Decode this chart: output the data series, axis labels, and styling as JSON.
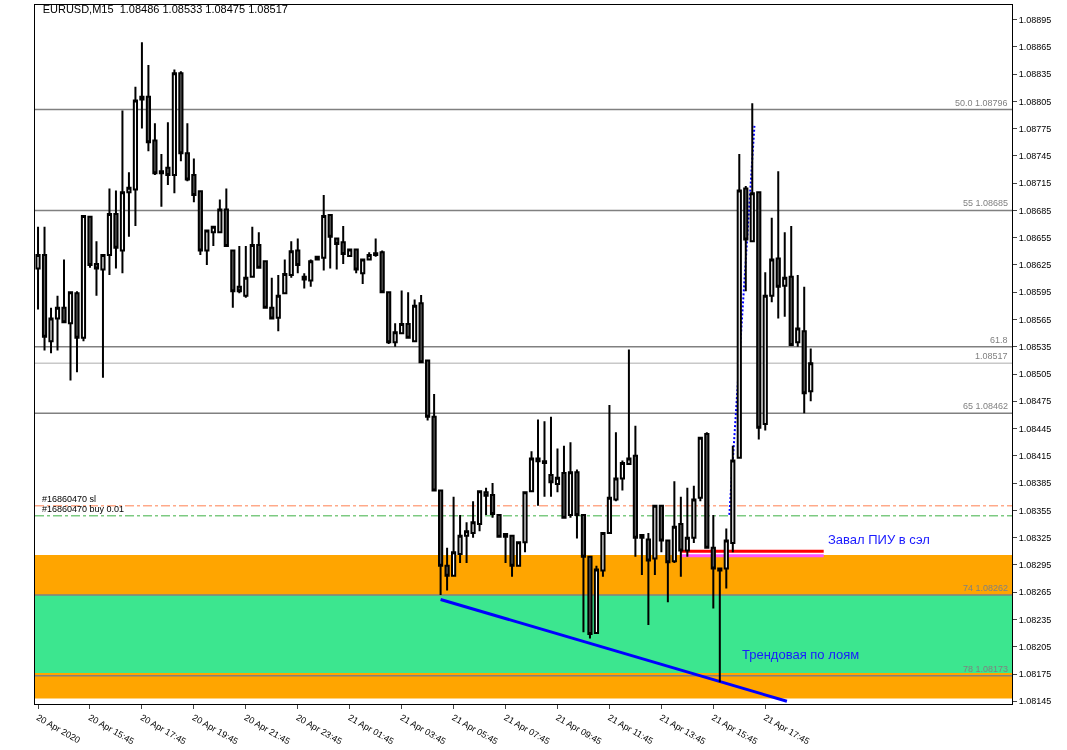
{
  "chart_data": {
    "type": "candlestick",
    "title": "EURUSD,M15  1.08486 1.08533 1.08475 1.08517",
    "x": [
      "2020-04-20T13:45",
      "2020-04-20T14:00",
      "2020-04-20T14:15",
      "2020-04-20T14:30",
      "2020-04-20T14:45",
      "2020-04-20T15:00",
      "2020-04-20T15:15",
      "2020-04-20T15:30",
      "2020-04-20T15:45",
      "2020-04-20T16:00",
      "2020-04-20T16:15",
      "2020-04-20T16:30",
      "2020-04-20T16:45",
      "2020-04-20T17:00",
      "2020-04-20T17:15",
      "2020-04-20T17:30",
      "2020-04-20T17:45",
      "2020-04-20T18:00",
      "2020-04-20T18:15",
      "2020-04-20T18:30",
      "2020-04-20T18:45",
      "2020-04-20T19:00",
      "2020-04-20T19:15",
      "2020-04-20T19:30",
      "2020-04-20T19:45",
      "2020-04-20T20:00",
      "2020-04-20T20:15",
      "2020-04-20T20:30",
      "2020-04-20T20:45",
      "2020-04-20T21:00",
      "2020-04-20T21:15",
      "2020-04-20T21:30",
      "2020-04-20T21:45",
      "2020-04-20T22:00",
      "2020-04-20T22:15",
      "2020-04-20T22:30",
      "2020-04-20T22:45",
      "2020-04-20T23:00",
      "2020-04-20T23:15",
      "2020-04-20T23:30",
      "2020-04-20T23:45",
      "2020-04-21T00:00",
      "2020-04-21T00:15",
      "2020-04-21T00:30",
      "2020-04-21T00:45",
      "2020-04-21T01:00",
      "2020-04-21T01:15",
      "2020-04-21T01:30",
      "2020-04-21T01:45",
      "2020-04-21T02:00",
      "2020-04-21T02:15",
      "2020-04-21T02:30",
      "2020-04-21T02:45",
      "2020-04-21T03:00",
      "2020-04-21T03:15",
      "2020-04-21T03:30",
      "2020-04-21T03:45",
      "2020-04-21T04:00",
      "2020-04-21T04:15",
      "2020-04-21T04:30",
      "2020-04-21T04:45",
      "2020-04-21T05:00",
      "2020-04-21T05:15",
      "2020-04-21T05:30",
      "2020-04-21T05:45",
      "2020-04-21T06:00",
      "2020-04-21T06:15",
      "2020-04-21T06:30",
      "2020-04-21T06:45",
      "2020-04-21T07:00",
      "2020-04-21T07:15",
      "2020-04-21T07:30",
      "2020-04-21T07:45",
      "2020-04-21T08:00",
      "2020-04-21T08:15",
      "2020-04-21T08:30",
      "2020-04-21T08:45",
      "2020-04-21T09:00",
      "2020-04-21T09:15",
      "2020-04-21T09:30",
      "2020-04-21T09:45",
      "2020-04-21T10:00",
      "2020-04-21T10:15",
      "2020-04-21T10:30",
      "2020-04-21T10:45",
      "2020-04-21T11:00",
      "2020-04-21T11:15",
      "2020-04-21T11:30",
      "2020-04-21T11:45",
      "2020-04-21T12:00",
      "2020-04-21T12:15",
      "2020-04-21T12:30",
      "2020-04-21T12:45",
      "2020-04-21T13:00",
      "2020-04-21T13:15",
      "2020-04-21T13:30",
      "2020-04-21T13:45",
      "2020-04-21T14:00",
      "2020-04-21T14:15",
      "2020-04-21T14:30",
      "2020-04-21T14:45",
      "2020-04-21T15:00",
      "2020-04-21T15:15",
      "2020-04-21T15:30",
      "2020-04-21T15:45",
      "2020-04-21T16:00",
      "2020-04-21T16:15",
      "2020-04-21T16:30",
      "2020-04-21T16:45",
      "2020-04-21T17:00",
      "2020-04-21T17:15",
      "2020-04-21T17:30",
      "2020-04-21T17:45",
      "2020-04-21T18:00",
      "2020-04-21T18:15",
      "2020-04-21T18:30",
      "2020-04-21T18:45",
      "2020-04-21T19:00",
      "2020-04-21T19:15",
      "2020-04-21T19:30"
    ],
    "ohlc": [
      [
        1.08621,
        1.08667,
        1.08576,
        1.08636
      ],
      [
        1.08636,
        1.08667,
        1.08531,
        1.08546
      ],
      [
        1.08541,
        1.08578,
        1.08528,
        1.08566
      ],
      [
        1.08566,
        1.08591,
        1.08531,
        1.08578
      ],
      [
        1.08578,
        1.08631,
        1.08561,
        1.08562
      ],
      [
        1.08561,
        1.08595,
        1.08498,
        1.08595
      ],
      [
        1.08594,
        1.08596,
        1.08507,
        1.08545
      ],
      [
        1.08545,
        1.08679,
        1.08541,
        1.08679
      ],
      [
        1.08678,
        1.08678,
        1.08622,
        1.08625
      ],
      [
        1.08626,
        1.08651,
        1.08591,
        1.08621
      ],
      [
        1.0862,
        1.08637,
        1.08501,
        1.08636
      ],
      [
        1.08636,
        1.08709,
        1.08614,
        1.08681
      ],
      [
        1.08681,
        1.08707,
        1.08621,
        1.08644
      ],
      [
        1.08641,
        1.08795,
        1.08616,
        1.08705
      ],
      [
        1.08705,
        1.08727,
        1.08656,
        1.0871
      ],
      [
        1.08708,
        1.08821,
        1.08668,
        1.08806
      ],
      [
        1.08807,
        1.0887,
        1.08775,
        1.0881
      ],
      [
        1.0881,
        1.08845,
        1.0875,
        1.0876
      ],
      [
        1.08762,
        1.08781,
        1.08724,
        1.08726
      ],
      [
        1.08728,
        1.08747,
        1.08689,
        1.08726
      ],
      [
        1.08732,
        1.08782,
        1.08713,
        1.08724
      ],
      [
        1.08724,
        1.0884,
        1.08704,
        1.08836
      ],
      [
        1.08836,
        1.08838,
        1.08739,
        1.08748
      ],
      [
        1.08748,
        1.08781,
        1.08717,
        1.08719
      ],
      [
        1.08724,
        1.08742,
        1.08694,
        1.08702
      ],
      [
        1.08706,
        1.08706,
        1.08636,
        1.08641
      ],
      [
        1.08641,
        1.08663,
        1.08625,
        1.08663
      ],
      [
        1.08661,
        1.08667,
        1.08646,
        1.08667
      ],
      [
        1.08661,
        1.08697,
        1.08661,
        1.08686
      ],
      [
        1.08686,
        1.08709,
        1.08646,
        1.08646
      ],
      [
        1.08641,
        1.08641,
        1.08578,
        1.08596
      ],
      [
        1.08601,
        1.08646,
        1.08594,
        1.08596
      ],
      [
        1.08591,
        1.08646,
        1.08589,
        1.08611
      ],
      [
        1.08612,
        1.08667,
        1.08611,
        1.08647
      ],
      [
        1.08647,
        1.08661,
        1.08621,
        1.08622
      ],
      [
        1.08629,
        1.08629,
        1.08577,
        1.08578
      ],
      [
        1.08578,
        1.08611,
        1.08565,
        1.08566
      ],
      [
        1.08567,
        1.08614,
        1.08552,
        1.08591
      ],
      [
        1.08594,
        1.08631,
        1.08594,
        1.08615
      ],
      [
        1.08614,
        1.08651,
        1.08611,
        1.0864
      ],
      [
        1.08641,
        1.08654,
        1.08616,
        1.08625
      ],
      [
        1.08612,
        1.08616,
        1.08599,
        1.08609
      ],
      [
        1.08608,
        1.08631,
        1.08601,
        1.08629
      ],
      [
        1.08631,
        1.08635,
        1.0863,
        1.08634
      ],
      [
        1.08633,
        1.08702,
        1.08619,
        1.08679
      ],
      [
        1.0868,
        1.0868,
        1.08621,
        1.08656
      ],
      [
        1.08654,
        1.08655,
        1.0862,
        1.08648
      ],
      [
        1.0865,
        1.08668,
        1.08626,
        1.08637
      ],
      [
        1.08635,
        1.08643,
        1.08634,
        1.08642
      ],
      [
        1.08642,
        1.08642,
        1.08616,
        1.0862
      ],
      [
        1.08616,
        1.08631,
        1.08604,
        1.08631
      ],
      [
        1.08631,
        1.08639,
        1.0863,
        1.08636
      ],
      [
        1.08636,
        1.08654,
        1.08634,
        1.08638
      ],
      [
        1.08639,
        1.08641,
        1.08595,
        1.08595
      ],
      [
        1.08595,
        1.08595,
        1.08538,
        1.0854
      ],
      [
        1.0854,
        1.08561,
        1.08535,
        1.08551
      ],
      [
        1.0855,
        1.08597,
        1.0855,
        1.0856
      ],
      [
        1.0856,
        1.08595,
        1.08545,
        1.08545
      ],
      [
        1.08541,
        1.08587,
        1.08541,
        1.0858
      ],
      [
        1.08583,
        1.08592,
        1.08518,
        1.08518
      ],
      [
        1.0852,
        1.0852,
        1.08454,
        1.08458
      ],
      [
        1.08458,
        1.08483,
        1.08377,
        1.08377
      ],
      [
        1.08377,
        1.08377,
        1.08262,
        1.08294
      ],
      [
        1.08294,
        1.08314,
        1.08267,
        1.08283
      ],
      [
        1.08283,
        1.0837,
        1.08283,
        1.08309
      ],
      [
        1.08307,
        1.0835,
        1.08297,
        1.08327
      ],
      [
        1.08327,
        1.08342,
        1.08297,
        1.08332
      ],
      [
        1.0833,
        1.08365,
        1.08325,
        1.08342
      ],
      [
        1.0834,
        1.08376,
        1.08332,
        1.08376
      ],
      [
        1.08375,
        1.0838,
        1.0835,
        1.08371
      ],
      [
        1.08372,
        1.08385,
        1.08347,
        1.08351
      ],
      [
        1.0835,
        1.0835,
        1.08326,
        1.08326
      ],
      [
        1.08326,
        1.0833,
        1.08297,
        1.08329
      ],
      [
        1.08327,
        1.08327,
        1.08282,
        1.08294
      ],
      [
        1.08294,
        1.0832,
        1.08294,
        1.0832
      ],
      [
        1.0832,
        1.08375,
        1.08309,
        1.08375
      ],
      [
        1.08376,
        1.0842,
        1.08376,
        1.08412
      ],
      [
        1.08409,
        1.08455,
        1.0836,
        1.08412
      ],
      [
        1.08409,
        1.08453,
        1.0837,
        1.08407
      ],
      [
        1.08394,
        1.08458,
        1.0837,
        1.08386
      ],
      [
        1.08384,
        1.08423,
        1.08375,
        1.08391
      ],
      [
        1.08396,
        1.08426,
        1.08347,
        1.08347
      ],
      [
        1.0835,
        1.0843,
        1.08347,
        1.08397
      ],
      [
        1.08397,
        1.084,
        1.08324,
        1.0835
      ],
      [
        1.0835,
        1.0835,
        1.08221,
        1.08304
      ],
      [
        1.08304,
        1.08304,
        1.08214,
        1.08219
      ],
      [
        1.0822,
        1.08294,
        1.08219,
        1.0829
      ],
      [
        1.08289,
        1.0833,
        1.08282,
        1.0833
      ],
      [
        1.0833,
        1.08471,
        1.08329,
        1.08369
      ],
      [
        1.08367,
        1.08441,
        1.08365,
        1.0839
      ],
      [
        1.0839,
        1.0841,
        1.08377,
        1.08407
      ],
      [
        1.08406,
        1.08532,
        1.08406,
        1.08412
      ],
      [
        1.08415,
        1.08448,
        1.08304,
        1.08325
      ],
      [
        1.08328,
        1.08328,
        1.08284,
        1.08325
      ],
      [
        1.08323,
        1.0833,
        1.08229,
        1.083
      ],
      [
        1.08302,
        1.0836,
        1.08284,
        1.0836
      ],
      [
        1.0836,
        1.0836,
        1.08309,
        1.08322
      ],
      [
        1.08322,
        1.08322,
        1.08254,
        1.08298
      ],
      [
        1.08299,
        1.08387,
        1.08297,
        1.08337
      ],
      [
        1.0834,
        1.0837,
        1.08282,
        1.08311
      ],
      [
        1.08311,
        1.0838,
        1.08304,
        1.08325
      ],
      [
        1.08325,
        1.08382,
        1.08319,
        1.08367
      ],
      [
        1.08369,
        1.08435,
        1.08365,
        1.08435
      ],
      [
        1.08439,
        1.08441,
        1.08314,
        1.08314
      ],
      [
        1.08314,
        1.0835,
        1.08247,
        1.08291
      ],
      [
        1.08289,
        1.08291,
        1.08166,
        1.08291
      ],
      [
        1.08291,
        1.08335,
        1.08269,
        1.08322
      ],
      [
        1.08319,
        1.08426,
        1.08309,
        1.0841
      ],
      [
        1.08413,
        1.08747,
        1.08413,
        1.08707
      ],
      [
        1.08709,
        1.08712,
        1.08596,
        1.08653
      ],
      [
        1.08651,
        1.08803,
        1.08651,
        1.08704
      ],
      [
        1.08705,
        1.08705,
        1.08433,
        1.08446
      ],
      [
        1.0845,
        1.08617,
        1.08443,
        1.08591
      ],
      [
        1.08591,
        1.08677,
        1.08584,
        1.08631
      ],
      [
        1.08632,
        1.08728,
        1.08566,
        1.08601
      ],
      [
        1.08602,
        1.08661,
        1.08568,
        1.08611
      ],
      [
        1.08612,
        1.08668,
        1.08537,
        1.08537
      ],
      [
        1.0854,
        1.08614,
        1.08535,
        1.08555
      ],
      [
        1.08552,
        1.08601,
        1.08462,
        1.08484
      ],
      [
        1.08486,
        1.08533,
        1.08475,
        1.08517
      ]
    ],
    "series": [
      {
        "type": "line",
        "x": [
          "2020-04-21T05:15",
          "2020-04-21T18:35"
        ],
        "values": [
          1.08257,
          1.08145
        ],
        "color": "#0000ff"
      },
      {
        "type": "line",
        "x": [
          "2020-04-21T14:30",
          "2020-04-21T20:00"
        ],
        "values": [
          1.0831,
          1.0831
        ],
        "color": "#ff0000"
      },
      {
        "type": "line",
        "x": [
          "2020-04-21T14:30",
          "2020-04-21T20:00"
        ],
        "values": [
          1.08305,
          1.08305
        ],
        "color": "#ff55ff"
      },
      {
        "type": "line",
        "x": [
          "2020-04-21T16:22",
          "2020-04-21T17:20"
        ],
        "values": [
          1.0835,
          1.08778
        ],
        "color": "#0000ff",
        "line_style": "dotted"
      }
    ],
    "bands": [
      {
        "axis": "y",
        "from": 1.08148,
        "to": 1.08306,
        "color": "#ffa500"
      },
      {
        "axis": "y",
        "from": 1.08176,
        "to": 1.08262,
        "color": "#3ce68f"
      }
    ],
    "ref_lines": [
      {
        "axis": "y",
        "value": 1.08796,
        "label": "50.0 1.08796",
        "color": "#808080"
      },
      {
        "axis": "y",
        "value": 1.08685,
        "label": "55 1.08685",
        "color": "#808080"
      },
      {
        "axis": "y",
        "value": 1.08535,
        "color": "#808080"
      },
      {
        "axis": "y",
        "value": 1.08517,
        "label": "1.08517",
        "color": "#c8c8c8"
      },
      {
        "axis": "y",
        "value": 1.08462,
        "label": "65 1.08462",
        "color": "#808080"
      },
      {
        "axis": "y",
        "value": 1.08262,
        "label": "74 1.08262",
        "color": "#808080"
      },
      {
        "axis": "y",
        "value": 1.08173,
        "label": "78 1.08173",
        "color": "#808080"
      },
      {
        "axis": "y",
        "value": 1.0836,
        "label": "#16860470 sl",
        "color": "#ff7f50",
        "line_style": "dashed"
      },
      {
        "axis": "y",
        "value": 1.08349,
        "label": "#16860470 buy 0.01",
        "color": "#3cb043",
        "line_style": "dashed"
      }
    ],
    "annotations": [
      "Завал ПИУ в сэл",
      "Трендовая по лоям",
      "61.8"
    ],
    "xlim": [
      "2020-04-20T13:38",
      "2020-04-22T03:15"
    ],
    "xticks": [
      {
        "value": "2020-04-20T13:45",
        "label": "20 Apr 2020"
      },
      {
        "value": "2020-04-20T15:45",
        "label": "20 Apr 15:45"
      },
      {
        "value": "2020-04-20T17:45",
        "label": "20 Apr 17:45"
      },
      {
        "value": "2020-04-20T19:45",
        "label": "20 Apr 19:45"
      },
      {
        "value": "2020-04-20T21:45",
        "label": "20 Apr 21:45"
      },
      {
        "value": "2020-04-20T23:45",
        "label": "20 Apr 23:45"
      },
      {
        "value": "2020-04-21T01:45",
        "label": "21 Apr 01:45"
      },
      {
        "value": "2020-04-21T03:45",
        "label": "21 Apr 03:45"
      },
      {
        "value": "2020-04-21T05:45",
        "label": "21 Apr 05:45"
      },
      {
        "value": "2020-04-21T07:45",
        "label": "21 Apr 07:45"
      },
      {
        "value": "2020-04-21T09:45",
        "label": "21 Apr 09:45"
      },
      {
        "value": "2020-04-21T11:45",
        "label": "21 Apr 11:45"
      },
      {
        "value": "2020-04-21T13:45",
        "label": "21 Apr 13:45"
      },
      {
        "value": "2020-04-21T15:45",
        "label": "21 Apr 15:45"
      },
      {
        "value": "2020-04-21T17:45",
        "label": "21 Apr 17:45"
      }
    ],
    "ylim": [
      1.08142,
      1.08911
    ],
    "yticks": [
      1.08145,
      1.08175,
      1.08205,
      1.08235,
      1.08265,
      1.08295,
      1.08325,
      1.08355,
      1.08385,
      1.08415,
      1.08445,
      1.08475,
      1.08505,
      1.08535,
      1.08565,
      1.08595,
      1.08625,
      1.08655,
      1.08685,
      1.08715,
      1.08745,
      1.08775,
      1.08805,
      1.08835,
      1.08865,
      1.08895
    ],
    "grid": false
  }
}
